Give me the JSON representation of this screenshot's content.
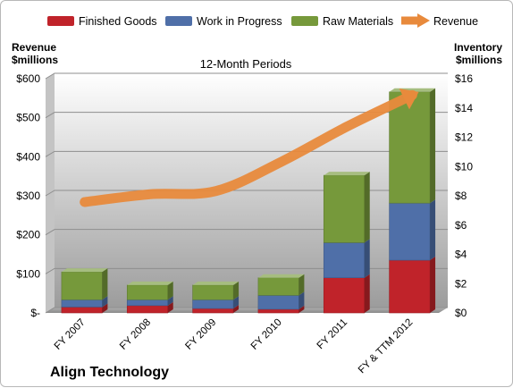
{
  "chart_data": {
    "type": "bar",
    "subtitle": "12-Month Periods",
    "company": "Align Technology",
    "categories": [
      "FY 2007",
      "FY 2008",
      "FY 2009",
      "FY 2010",
      "FY 2011",
      "FY & TTM 2012"
    ],
    "series": [
      {
        "name": "Finished Goods",
        "axis": "right",
        "kind": "stacked-bar",
        "color": "#c0232a",
        "values": [
          0.4,
          0.5,
          0.3,
          0.25,
          2.4,
          3.6
        ]
      },
      {
        "name": "Work in Progress",
        "axis": "right",
        "kind": "stacked-bar",
        "color": "#4f6fa8",
        "values": [
          0.5,
          0.4,
          0.6,
          0.95,
          2.4,
          3.9
        ]
      },
      {
        "name": "Raw Materials",
        "axis": "right",
        "kind": "stacked-bar",
        "color": "#76993b",
        "values": [
          1.9,
          1.0,
          1.0,
          1.2,
          4.6,
          7.6
        ]
      },
      {
        "name": "Revenue",
        "axis": "left",
        "kind": "line",
        "color": "#e88a3c",
        "values": [
          284,
          304,
          312,
          387,
          477,
          558
        ]
      }
    ],
    "legend": [
      "Finished Goods",
      "Work in Progress",
      "Raw Materials",
      "Revenue"
    ],
    "legend_position": "top",
    "left_axis": {
      "title_line1": "Revenue",
      "title_line2": "$millions",
      "ylim": [
        0,
        600
      ],
      "ticks": [
        0,
        100,
        200,
        300,
        400,
        500,
        600
      ],
      "tick_labels": [
        "$-",
        "$100",
        "$200",
        "$300",
        "$400",
        "$500",
        "$600"
      ]
    },
    "right_axis": {
      "title_line1": "Inventory",
      "title_line2": "$millions",
      "ylim": [
        0,
        16
      ],
      "ticks": [
        0,
        2,
        4,
        6,
        8,
        10,
        12,
        14,
        16
      ],
      "tick_labels": [
        "$0",
        "$2",
        "$4",
        "$6",
        "$8",
        "$10",
        "$12",
        "$14",
        "$16"
      ]
    },
    "grid": true
  }
}
